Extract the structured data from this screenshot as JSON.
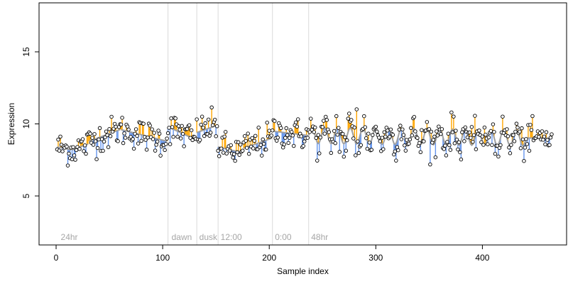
{
  "chart_data": {
    "type": "scatter",
    "xlabel": "Sample index",
    "ylabel": "Expression",
    "xlim": [
      -16,
      479
    ],
    "ylim": [
      1.6,
      18.4
    ],
    "x_ticks": [
      0,
      100,
      200,
      300,
      400
    ],
    "y_ticks": [
      5,
      10,
      15
    ],
    "grid": false,
    "phase_boundaries": [
      105,
      132,
      152,
      203,
      237
    ],
    "phase_labels": [
      {
        "text": "24hr",
        "x": 3
      },
      {
        "text": "dawn",
        "x": 107
      },
      {
        "text": "dusk",
        "x": 133
      },
      {
        "text": "12:00",
        "x": 153
      },
      {
        "text": "0:00",
        "x": 204
      },
      {
        "text": "48hr",
        "x": 238
      }
    ],
    "colors": {
      "point_fill": "#ffffff",
      "point_stroke": "#000000",
      "above_segment": "#ffa500",
      "below_segment": "#6495ed",
      "fit_line": "#a0a0a0",
      "divider": "#d9d9d9",
      "phase_label": "#a6a6a6"
    },
    "fit_segments": [
      {
        "start": 1,
        "end": 14,
        "y0": 8.4,
        "y1": 8.2
      },
      {
        "start": 15,
        "end": 30,
        "y0": 8.2,
        "y1": 8.6
      },
      {
        "start": 31,
        "end": 60,
        "y0": 8.8,
        "y1": 9.6
      },
      {
        "start": 61,
        "end": 104,
        "y0": 9.6,
        "y1": 8.8
      },
      {
        "start": 105,
        "end": 131,
        "y0": 9.8,
        "y1": 8.9
      },
      {
        "start": 132,
        "end": 151,
        "y0": 9.4,
        "y1": 9.9
      },
      {
        "start": 152,
        "end": 175,
        "y0": 8.4,
        "y1": 8.0
      },
      {
        "start": 176,
        "end": 202,
        "y0": 8.3,
        "y1": 9.0
      },
      {
        "start": 203,
        "end": 236,
        "y0": 9.5,
        "y1": 9.2
      },
      {
        "start": 237,
        "end": 465,
        "y0": 9.2,
        "y1": 9.0
      }
    ],
    "oscillation": {
      "start": 237,
      "end": 440,
      "amplitude": 0.55,
      "period": 12
    },
    "noise_scale": 0.55,
    "point_count": 465
  }
}
